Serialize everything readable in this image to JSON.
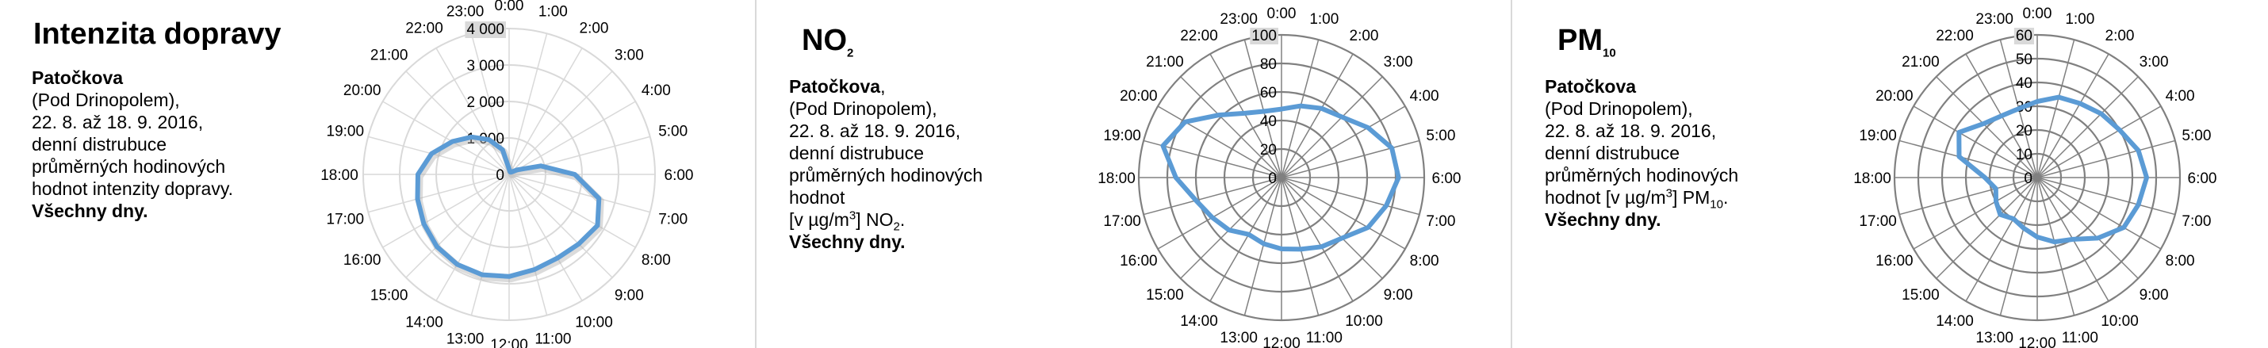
{
  "panels": [
    {
      "title": "Intenzita dopravy",
      "desc": {
        "location": "Patočkova",
        "line1": "(Pod Drinopolem),",
        "line2": "22. 8. až 18. 9. 2016,",
        "line3": "denní distrubuce",
        "line4": "průměrných hodinových",
        "line5": "hodnot intenzity dopravy.",
        "days": "Všechny dny."
      }
    },
    {
      "title_main": "NO",
      "title_sub": "2",
      "desc": {
        "location": "Patočkova",
        "line1": "(Pod Drinopolem),",
        "line2": "22. 8. až 18. 9. 2016,",
        "line3": "denní distrubuce",
        "line4": "průměrných hodinových",
        "line5": "hodnot",
        "unit_pre": "[v µg/m",
        "unit_sup": "3",
        "unit_post": "] NO",
        "unit_sub": "2",
        "unit_end": ".",
        "days": "Všechny dny."
      }
    },
    {
      "title_main": "PM",
      "title_sub": "10",
      "desc": {
        "location": "Patočkova",
        "line1": "(Pod Drinopolem),",
        "line2": "22. 8. až 18. 9. 2016,",
        "line3": "denní distrubuce",
        "line4": "průměrných hodinových",
        "line5_pre": "hodnot  [v µg/m",
        "line5_sup": "3",
        "line5_mid": "] PM",
        "line5_sub": "10",
        "line5_end": ".",
        "days": "Všechny dny."
      }
    }
  ],
  "chart_data": [
    {
      "type": "radar",
      "categories": [
        "0:00",
        "1:00",
        "2:00",
        "3:00",
        "4:00",
        "5:00",
        "6:00",
        "7:00",
        "8:00",
        "9:00",
        "10:00",
        "11:00",
        "12:00",
        "13:00",
        "14:00",
        "15:00",
        "16:00",
        "17:00",
        "18:00",
        "19:00",
        "20:00",
        "21:00",
        "22:00",
        "23:00"
      ],
      "values": [
        150,
        80,
        70,
        90,
        250,
        900,
        1800,
        2550,
        2800,
        2700,
        2650,
        2700,
        2800,
        2850,
        2850,
        2800,
        2700,
        2600,
        2500,
        2200,
        1800,
        1450,
        1100,
        700
      ],
      "rticks": [
        "0",
        "1 000",
        "2 000",
        "3 000",
        "4 000"
      ],
      "rlim": [
        0,
        4000
      ],
      "color": "#5b9bd5",
      "grid_color": "#d9d9d9"
    },
    {
      "type": "radar",
      "categories": [
        "0:00",
        "1:00",
        "2:00",
        "3:00",
        "4:00",
        "5:00",
        "6:00",
        "7:00",
        "8:00",
        "9:00",
        "10:00",
        "11:00",
        "12:00",
        "13:00",
        "14:00",
        "15:00",
        "16:00",
        "17:00",
        "18:00",
        "19:00",
        "20:00",
        "21:00",
        "22:00",
        "23:00"
      ],
      "values": [
        48,
        52,
        56,
        60,
        70,
        80,
        82,
        76,
        70,
        60,
        56,
        52,
        50,
        48,
        46,
        52,
        56,
        62,
        74,
        86,
        78,
        62,
        52,
        48
      ],
      "rticks": [
        "0",
        "20",
        "40",
        "60",
        "80",
        "100"
      ],
      "rlim": [
        0,
        100
      ],
      "color": "#5b9bd5",
      "grid_color": "#808080"
    },
    {
      "type": "radar",
      "categories": [
        "0:00",
        "1:00",
        "2:00",
        "3:00",
        "4:00",
        "5:00",
        "6:00",
        "7:00",
        "8:00",
        "9:00",
        "10:00",
        "11:00",
        "12:00",
        "13:00",
        "14:00",
        "15:00",
        "16:00",
        "17:00",
        "18:00",
        "19:00",
        "20:00",
        "21:00",
        "22:00",
        "23:00"
      ],
      "values": [
        32,
        35,
        36,
        38,
        40,
        44,
        46,
        44,
        42,
        36,
        30,
        28,
        25,
        22,
        20,
        22,
        20,
        18,
        22,
        34,
        38,
        32,
        30,
        30
      ],
      "rticks": [
        "0",
        "10",
        "20",
        "30",
        "40",
        "50",
        "60"
      ],
      "rlim": [
        0,
        60
      ],
      "color": "#5b9bd5",
      "grid_color": "#808080"
    }
  ]
}
